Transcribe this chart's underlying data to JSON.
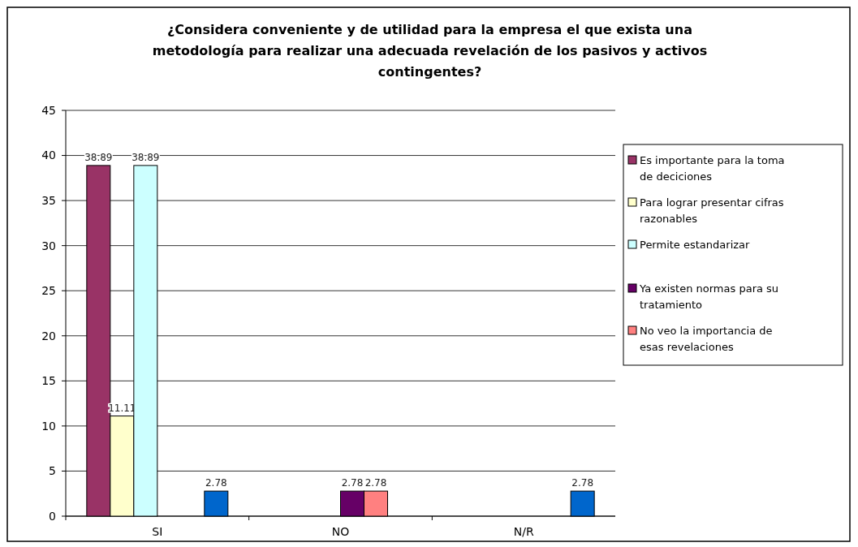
{
  "chart_data": {
    "type": "bar",
    "title": "¿Considera conveniente y de utilidad para la empresa el que exista una metodología para realizar una adecuada revelación de los pasivos y activos contingentes?",
    "categories": [
      "SI",
      "NO",
      "N/R"
    ],
    "series": [
      {
        "name": "Es importante para la toma de deciciones",
        "color": "#993366",
        "values": [
          38.89,
          null,
          null
        ]
      },
      {
        "name": "Para lograr presentar cifras razonables",
        "color": "#ffffcc",
        "values": [
          11.11,
          null,
          null
        ]
      },
      {
        "name": "Permite estandarizar",
        "color": "#ccffff",
        "values": [
          38.89,
          null,
          null
        ]
      },
      {
        "name": "Ya existen normas para su tratamiento",
        "color": "#660066",
        "values": [
          null,
          2.78,
          null
        ]
      },
      {
        "name": "No veo la importancia de esas revelaciones",
        "color": "#ff8080",
        "values": [
          null,
          2.78,
          null
        ]
      },
      {
        "color": "#0066cc",
        "values": [
          2.78,
          null,
          2.78
        ]
      }
    ],
    "ylim": [
      0,
      45
    ],
    "yticks": [
      0,
      5,
      10,
      15,
      20,
      25,
      30,
      35,
      40,
      45
    ],
    "grid": "y",
    "legend": "right",
    "data_labels": true
  }
}
